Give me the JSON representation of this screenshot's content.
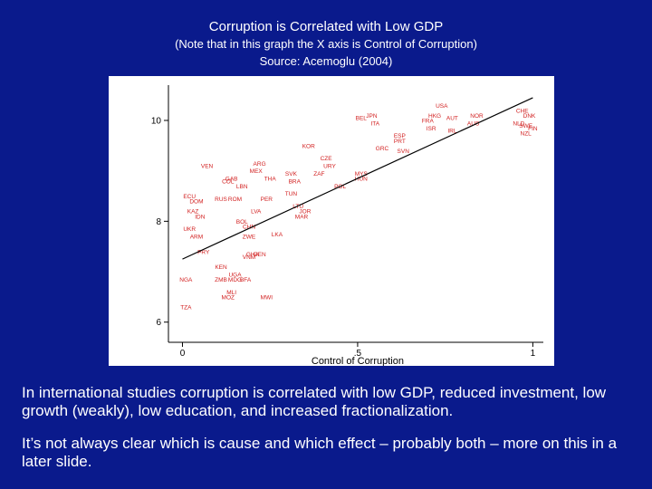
{
  "slide": {
    "title": "Corruption is Correlated with Low GDP",
    "note": "(Note that in this graph the X axis is Control of Corruption)",
    "source": "Source: Acemoglu (2004)",
    "paragraph1": "In international studies corruption is correlated with low GDP, reduced investment, low growth (weakly), low education, and increased fractionalization.",
    "paragraph2": "It’s not always clear which is cause and which effect – probably both – more on this in a later slide."
  },
  "chart_data": {
    "type": "scatter",
    "xlabel": "Control of Corruption",
    "ylabel": "",
    "xlim": [
      -0.04,
      1.03
    ],
    "ylim": [
      5.6,
      10.7
    ],
    "xticks": [
      0,
      0.5,
      1
    ],
    "xtick_labels": [
      "0",
      ".5",
      "1"
    ],
    "yticks": [
      6,
      8,
      10
    ],
    "ytick_labels": [
      "6",
      "8",
      "10"
    ],
    "point_color": "#d22020",
    "fit_line": {
      "x": [
        0.0,
        1.0
      ],
      "y": [
        7.25,
        10.45
      ]
    },
    "points": [
      {
        "label": "USA",
        "x": 0.74,
        "y": 10.3
      },
      {
        "label": "HKG",
        "x": 0.72,
        "y": 10.1
      },
      {
        "label": "AUT",
        "x": 0.77,
        "y": 10.05
      },
      {
        "label": "NOR",
        "x": 0.84,
        "y": 10.1
      },
      {
        "label": "ISR",
        "x": 0.71,
        "y": 9.85
      },
      {
        "label": "FRA",
        "x": 0.7,
        "y": 10.0
      },
      {
        "label": "AUS",
        "x": 0.83,
        "y": 9.95
      },
      {
        "label": "IRL",
        "x": 0.77,
        "y": 9.8
      },
      {
        "label": "ESP",
        "x": 0.62,
        "y": 9.7
      },
      {
        "label": "PRT",
        "x": 0.62,
        "y": 9.6
      },
      {
        "label": "JPN",
        "x": 0.54,
        "y": 10.1
      },
      {
        "label": "BEL",
        "x": 0.51,
        "y": 10.05
      },
      {
        "label": "ITA",
        "x": 0.55,
        "y": 9.95
      },
      {
        "label": "CHE",
        "x": 0.97,
        "y": 10.2
      },
      {
        "label": "DNK",
        "x": 0.99,
        "y": 10.1
      },
      {
        "label": "NLD",
        "x": 0.96,
        "y": 9.95
      },
      {
        "label": "SWE",
        "x": 0.98,
        "y": 9.9
      },
      {
        "label": "FIN",
        "x": 1.0,
        "y": 9.85
      },
      {
        "label": "NZL",
        "x": 0.98,
        "y": 9.75
      },
      {
        "label": "KOR",
        "x": 0.36,
        "y": 9.5
      },
      {
        "label": "GRC",
        "x": 0.57,
        "y": 9.45
      },
      {
        "label": "SVN",
        "x": 0.63,
        "y": 9.4
      },
      {
        "label": "CZE",
        "x": 0.41,
        "y": 9.25
      },
      {
        "label": "URY",
        "x": 0.42,
        "y": 9.1
      },
      {
        "label": "ZAF",
        "x": 0.39,
        "y": 8.95
      },
      {
        "label": "MYS",
        "x": 0.51,
        "y": 8.95
      },
      {
        "label": "HUN",
        "x": 0.51,
        "y": 8.85
      },
      {
        "label": "POL",
        "x": 0.45,
        "y": 8.7
      },
      {
        "label": "ARG",
        "x": 0.22,
        "y": 9.15
      },
      {
        "label": "MEX",
        "x": 0.21,
        "y": 9.0
      },
      {
        "label": "VEN",
        "x": 0.07,
        "y": 9.1
      },
      {
        "label": "GAB",
        "x": 0.14,
        "y": 8.85
      },
      {
        "label": "COL",
        "x": 0.13,
        "y": 8.8
      },
      {
        "label": "THA",
        "x": 0.25,
        "y": 8.85
      },
      {
        "label": "SVK",
        "x": 0.31,
        "y": 8.95
      },
      {
        "label": "BRA",
        "x": 0.32,
        "y": 8.8
      },
      {
        "label": "LBN",
        "x": 0.17,
        "y": 8.7
      },
      {
        "label": "TUN",
        "x": 0.31,
        "y": 8.55
      },
      {
        "label": "ECU",
        "x": 0.02,
        "y": 8.5
      },
      {
        "label": "PER",
        "x": 0.24,
        "y": 8.45
      },
      {
        "label": "DOM",
        "x": 0.04,
        "y": 8.4
      },
      {
        "label": "RUS",
        "x": 0.11,
        "y": 8.45
      },
      {
        "label": "ROM",
        "x": 0.15,
        "y": 8.45
      },
      {
        "label": "LTU",
        "x": 0.33,
        "y": 8.3
      },
      {
        "label": "JOR",
        "x": 0.35,
        "y": 8.2
      },
      {
        "label": "MAR",
        "x": 0.34,
        "y": 8.1
      },
      {
        "label": "LVA",
        "x": 0.21,
        "y": 8.2
      },
      {
        "label": "KAZ",
        "x": 0.03,
        "y": 8.2
      },
      {
        "label": "IDN",
        "x": 0.05,
        "y": 8.1
      },
      {
        "label": "BOL",
        "x": 0.17,
        "y": 8.0
      },
      {
        "label": "CHN",
        "x": 0.19,
        "y": 7.9
      },
      {
        "label": "UKR",
        "x": 0.02,
        "y": 7.85
      },
      {
        "label": "LKA",
        "x": 0.27,
        "y": 7.75
      },
      {
        "label": "ZWE",
        "x": 0.19,
        "y": 7.7
      },
      {
        "label": "ARM",
        "x": 0.04,
        "y": 7.7
      },
      {
        "label": "PRY",
        "x": 0.06,
        "y": 7.4
      },
      {
        "label": "GHA",
        "x": 0.2,
        "y": 7.35
      },
      {
        "label": "GEN",
        "x": 0.22,
        "y": 7.35
      },
      {
        "label": "VNM",
        "x": 0.19,
        "y": 7.3
      },
      {
        "label": "KEN",
        "x": 0.11,
        "y": 7.1
      },
      {
        "label": "UGA",
        "x": 0.15,
        "y": 6.95
      },
      {
        "label": "NGA",
        "x": 0.01,
        "y": 6.85
      },
      {
        "label": "ZMB",
        "x": 0.11,
        "y": 6.85
      },
      {
        "label": "MDG",
        "x": 0.15,
        "y": 6.85
      },
      {
        "label": "BFA",
        "x": 0.18,
        "y": 6.85
      },
      {
        "label": "MLI",
        "x": 0.14,
        "y": 6.6
      },
      {
        "label": "MOZ",
        "x": 0.13,
        "y": 6.5
      },
      {
        "label": "MWI",
        "x": 0.24,
        "y": 6.5
      },
      {
        "label": "TZA",
        "x": 0.01,
        "y": 6.3
      }
    ]
  }
}
